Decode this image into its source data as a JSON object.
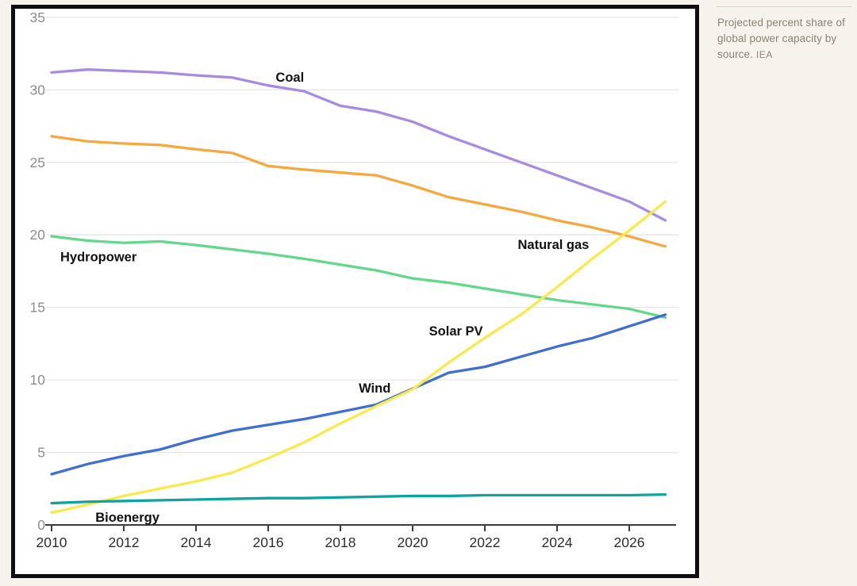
{
  "page": {
    "background_color": "#f6f3ec",
    "card_background": "#ffffff",
    "card_border_color": "#0e0e0e"
  },
  "caption": {
    "text": "Projected percent share of global power capacity by source.",
    "source": "IEA",
    "text_color": "#8b8376",
    "rule_color": "#d9d4c9"
  },
  "chart_data": {
    "type": "line",
    "title": "",
    "xlabel": "",
    "ylabel": "",
    "x": [
      2010,
      2011,
      2012,
      2013,
      2014,
      2015,
      2016,
      2017,
      2018,
      2019,
      2020,
      2021,
      2022,
      2023,
      2024,
      2025,
      2026,
      2027
    ],
    "series": [
      {
        "name": "Coal",
        "color": "#a78be0",
        "values": [
          31.2,
          31.4,
          31.3,
          31.2,
          31.0,
          30.85,
          30.3,
          29.9,
          28.9,
          28.5,
          27.8,
          26.8,
          25.9,
          25.0,
          24.1,
          23.2,
          22.3,
          21.0
        ],
        "label_year": 2016.6,
        "label_value": 30.9
      },
      {
        "name": "Natural gas",
        "color": "#f5a83e",
        "values": [
          26.8,
          26.45,
          26.3,
          26.2,
          25.9,
          25.65,
          24.75,
          24.5,
          24.3,
          24.1,
          23.4,
          22.6,
          22.1,
          21.6,
          21.0,
          20.5,
          19.9,
          19.2
        ],
        "label_year": 2023.9,
        "label_value": 19.35
      },
      {
        "name": "Hydropower",
        "color": "#63d88c",
        "values": [
          19.9,
          19.6,
          19.45,
          19.55,
          19.3,
          19.0,
          18.7,
          18.35,
          17.95,
          17.55,
          17.0,
          16.7,
          16.3,
          15.9,
          15.5,
          15.2,
          14.9,
          14.3
        ],
        "label_year": 2011.3,
        "label_value": 18.5
      },
      {
        "name": "Wind",
        "color": "#3e6fd0",
        "values": [
          3.5,
          4.2,
          4.75,
          5.2,
          5.9,
          6.5,
          6.9,
          7.3,
          7.8,
          8.3,
          9.4,
          10.5,
          10.9,
          11.6,
          12.3,
          12.9,
          13.7,
          14.5
        ],
        "label_year": 2018.95,
        "label_value": 9.45
      },
      {
        "name": "Solar PV",
        "color": "#f9e94d",
        "values": [
          0.85,
          1.4,
          2.0,
          2.5,
          3.0,
          3.6,
          4.6,
          5.7,
          7.0,
          8.2,
          9.35,
          11.2,
          12.9,
          14.5,
          16.4,
          18.4,
          20.3,
          22.3
        ],
        "label_year": 2021.2,
        "label_value": 13.4
      },
      {
        "name": "Bioenergy",
        "color": "#0fa3a0",
        "values": [
          1.5,
          1.6,
          1.65,
          1.7,
          1.75,
          1.8,
          1.85,
          1.85,
          1.9,
          1.95,
          2.0,
          2.0,
          2.05,
          2.05,
          2.05,
          2.05,
          2.05,
          2.1
        ],
        "label_year": 2012.1,
        "label_value": 0.55
      },
      {
        "name": "",
        "color": "",
        "values": [],
        "label_year": 0,
        "label_value": 0
      }
    ],
    "xticks": [
      "2010",
      "2012",
      "2014",
      "2016",
      "2018",
      "2020",
      "2022",
      "2024",
      "2026"
    ],
    "xtick_values": [
      2010,
      2012,
      2014,
      2016,
      2018,
      2020,
      2022,
      2024,
      2026
    ],
    "yticks": [
      "0",
      "5",
      "10",
      "15",
      "20",
      "25",
      "30",
      "35"
    ],
    "ytick_values": [
      0,
      5,
      10,
      15,
      20,
      25,
      30,
      35
    ],
    "ylim": [
      0,
      35
    ],
    "xlim": [
      2010,
      2027
    ],
    "grid": true,
    "legend_position": "inline-labels",
    "style": {
      "grid_color": "#e6e6e6",
      "axis_color": "#3c3c3c",
      "ytick_label_color": "#8d8d8d",
      "xtick_label_color": "#2e2e2e",
      "series_label_color": "#111111",
      "line_width": 3.3
    }
  }
}
